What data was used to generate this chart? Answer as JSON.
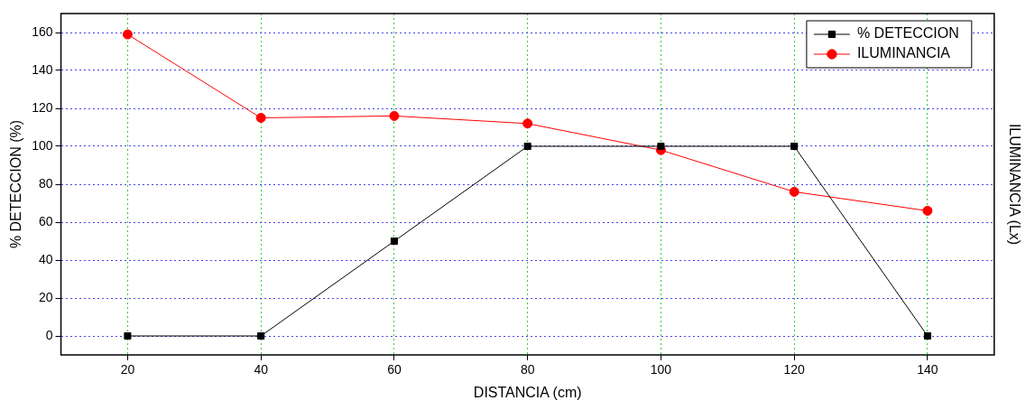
{
  "chart_data": {
    "type": "line",
    "xlabel": "DISTANCIA (cm)",
    "ylabel": "% DETECCION (%)",
    "y2label": "ILUMINANCIA (Lx)",
    "x": [
      20,
      40,
      60,
      80,
      100,
      120,
      140
    ],
    "series": [
      {
        "name": "% DETECCION",
        "color": "#000000",
        "marker": "square",
        "values": [
          0,
          0,
          50,
          100,
          100,
          100,
          0
        ]
      },
      {
        "name": "ILUMINANCIA",
        "color": "#ff0000",
        "marker": "circle",
        "values": [
          159,
          115,
          116,
          112,
          98,
          76,
          66
        ]
      }
    ],
    "xlim": [
      10,
      150
    ],
    "xticks": [
      20,
      40,
      60,
      80,
      100,
      120,
      140
    ],
    "ylim": [
      -10,
      170
    ],
    "yticks": [
      0,
      20,
      40,
      60,
      80,
      100,
      120,
      140,
      160
    ],
    "grid": true,
    "legend": "top right",
    "line_style": "solid"
  }
}
